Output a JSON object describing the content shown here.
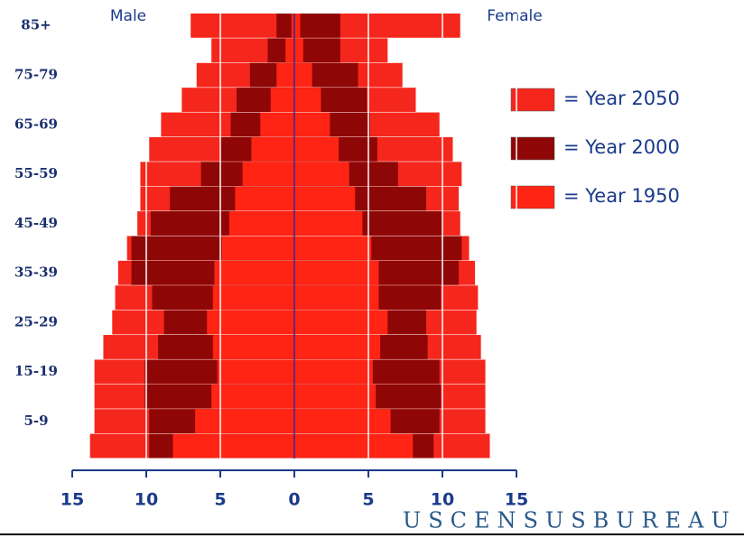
{
  "chart_data": {
    "type": "pyramid",
    "left_label": "Male",
    "right_label": "Female",
    "categories": [
      "85+",
      null,
      "75-79",
      null,
      "65-69",
      null,
      "55-59",
      null,
      "45-49",
      null,
      "35-39",
      null,
      "25-29",
      null,
      "15-19",
      null,
      "5-9",
      null
    ],
    "series": [
      {
        "name": "= Year 2050",
        "color": "#f5261c",
        "male": [
          7.0,
          5.6,
          6.6,
          7.6,
          9.0,
          9.8,
          10.4,
          10.4,
          10.6,
          11.3,
          11.9,
          12.1,
          12.3,
          12.9,
          13.5,
          13.5,
          13.5,
          13.8
        ],
        "female": [
          11.2,
          6.3,
          7.3,
          8.2,
          9.8,
          10.7,
          11.3,
          11.1,
          11.2,
          11.8,
          12.2,
          12.4,
          12.3,
          12.6,
          12.9,
          12.9,
          12.9,
          13.2
        ]
      },
      {
        "name": "= Year 2000",
        "color": "#8e0606",
        "male": [
          1.2,
          1.8,
          3.0,
          3.9,
          4.3,
          5.0,
          6.3,
          8.4,
          9.7,
          11.0,
          11.0,
          9.6,
          8.8,
          9.2,
          10.1,
          10.1,
          9.8,
          9.8
        ],
        "female": [
          3.1,
          3.1,
          4.3,
          4.9,
          5.1,
          5.6,
          7.0,
          8.9,
          10.0,
          11.3,
          11.1,
          9.9,
          8.9,
          9.0,
          9.8,
          9.9,
          9.8,
          9.4
        ]
      },
      {
        "name": "= Year 1950",
        "color": "#ff2414",
        "male": [
          0.2,
          0.6,
          1.2,
          1.6,
          2.3,
          2.9,
          3.5,
          4.0,
          4.4,
          4.9,
          5.4,
          5.5,
          5.9,
          5.5,
          5.2,
          5.6,
          6.7,
          8.2
        ],
        "female": [
          0.4,
          0.6,
          1.2,
          1.8,
          2.4,
          3.0,
          3.7,
          4.1,
          4.6,
          5.2,
          5.7,
          5.7,
          6.3,
          5.8,
          5.3,
          5.5,
          6.5,
          8.0
        ]
      }
    ],
    "xlim": [
      -15,
      15
    ],
    "xticks": [
      {
        "value": -15,
        "label": "15"
      },
      {
        "value": -10,
        "label": "10"
      },
      {
        "value": -5,
        "label": "5"
      },
      0,
      5,
      10,
      15
    ],
    "grid": true,
    "source": "USCENSUSBUREAU"
  }
}
